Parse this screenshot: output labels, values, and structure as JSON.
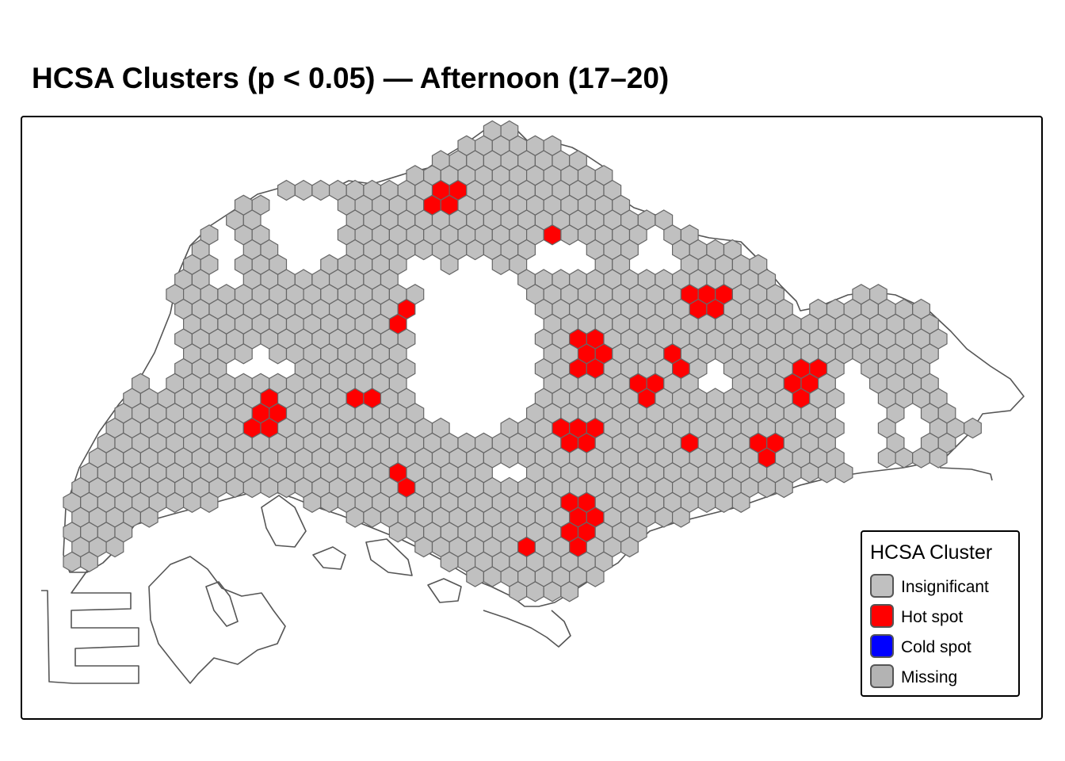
{
  "title": "HCSA Clusters (p < 0.05) — Afternoon (17–20)",
  "legend": {
    "title": "HCSA Cluster",
    "items": [
      {
        "label": "Insignificant",
        "color": "#C0C0C0"
      },
      {
        "label": "Hot spot",
        "color": "#FF0000"
      },
      {
        "label": "Cold spot",
        "color": "#0000FF"
      },
      {
        "label": "Missing",
        "color": "#B3B3B3"
      }
    ]
  },
  "colors": {
    "insignificant": "#C0C0C0",
    "hot_spot": "#FF0000",
    "cold_spot": "#0000FF",
    "hex_stroke": "#666666",
    "coastline": "#555555"
  }
}
